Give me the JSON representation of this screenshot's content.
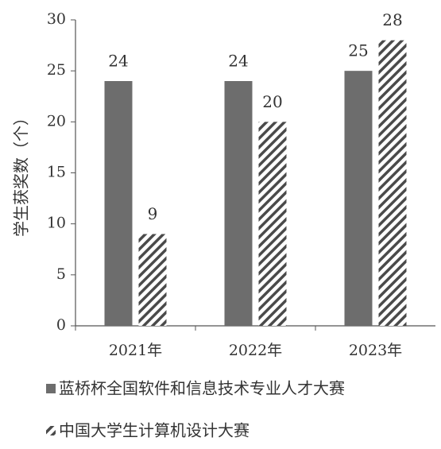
{
  "chart_data": {
    "type": "bar",
    "ylabel": "学生获奖数（个）",
    "categories": [
      "2021年",
      "2022年",
      "2023年"
    ],
    "series": [
      {
        "name": "蓝桥杯全国软件和信息技术专业人才大赛",
        "color": "#6d6d6d",
        "pattern": "solid",
        "values": [
          24,
          24,
          25
        ]
      },
      {
        "name": "中国大学生计算机设计大赛",
        "color": "#4a4a4a",
        "pattern": "hatch",
        "values": [
          9,
          20,
          28
        ]
      }
    ],
    "ylim": [
      0,
      30
    ],
    "yticks": [
      0,
      5,
      10,
      15,
      20,
      25,
      30
    ],
    "grid": false
  }
}
